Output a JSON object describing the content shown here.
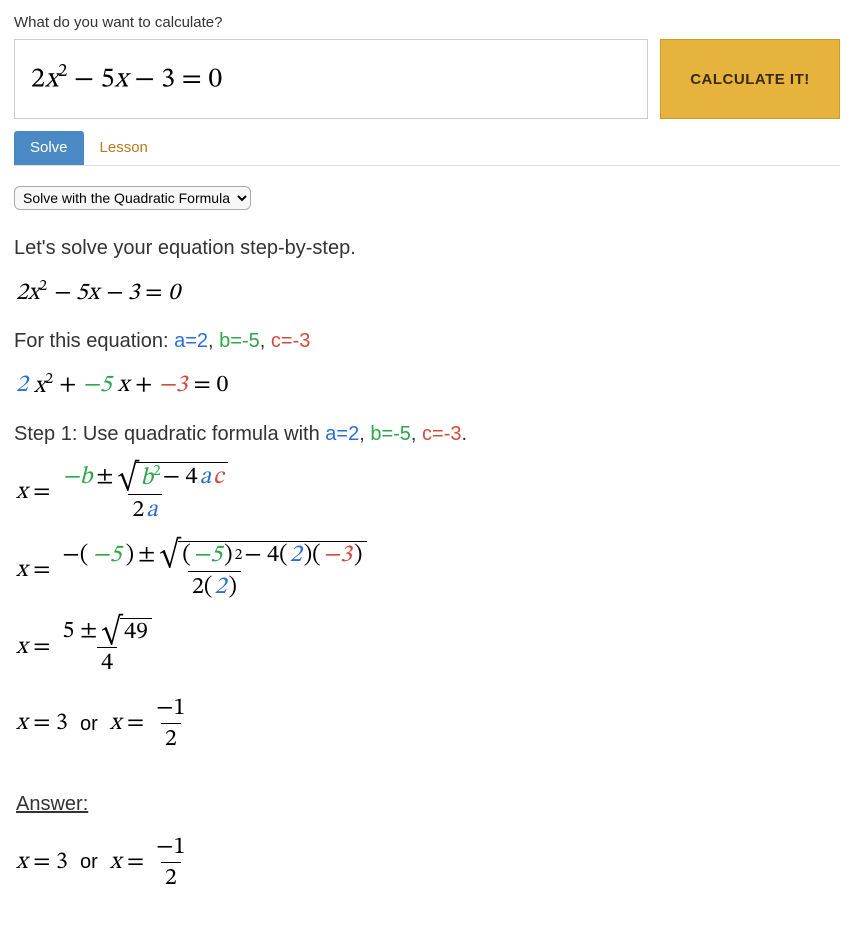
{
  "colors": {
    "a": "#2a6fd6",
    "b": "#2aa84a",
    "c": "#d14c3a",
    "tab_active_bg": "#4a89c4",
    "tab_inactive_fg": "#b77a1f",
    "calc_btn_bg": "#e6b33d"
  },
  "header": {
    "prompt": "What do you want to calculate?",
    "input_expression": "2x² − 5x − 3 = 0",
    "calculate_label": "CALCULATE IT!"
  },
  "tabs": {
    "solve": "Solve",
    "lesson": "Lesson",
    "active": "solve"
  },
  "method_select": {
    "options": [
      "Solve with the Quadratic Formula"
    ],
    "selected": "Solve with the Quadratic Formula"
  },
  "solution": {
    "intro": "Let's solve your equation step-by-step.",
    "equation_plain": "2x² − 5x − 3 = 0",
    "coeff_line_prefix": "For this equation: ",
    "a_label": "a=2",
    "b_label": "b=-5",
    "c_label": "c=-3",
    "colored_equation": {
      "pre_a": "2",
      "x2": "x",
      "plus1": " + ",
      "b_part": "−5",
      "x1": "x",
      "plus2": " + ",
      "c_part": "−3",
      "eq": " = 0"
    },
    "step1_prefix": "Step 1: Use quadratic formula with ",
    "formula": {
      "x_eq": "x =",
      "neg_b": "−b",
      "pm": "±",
      "b2": "b",
      "minus": " − 4",
      "a": "a",
      "c": "c",
      "two_a": "2a"
    },
    "substituted": {
      "x_eq": "x =",
      "neg_open": "−(",
      "neg5": "−5",
      "close": ")",
      "pm": "±",
      "open": "(",
      "neg5b": "−5",
      "close_sq": ")",
      "minus4": " − 4(",
      "two": "2",
      "mid": ")(",
      "neg3": "−3",
      "end": ")",
      "den_2": "2(",
      "den_two": "2",
      "den_close": ")"
    },
    "simplified": {
      "x_eq": "x =",
      "num": "5 ± ",
      "rad": "49",
      "den": "4"
    },
    "roots": {
      "x_eq1": "x = 3",
      "or": "or",
      "x_eq2": "x =",
      "neg1": "−1",
      "two": "2"
    },
    "answer_label": "Answer:"
  }
}
